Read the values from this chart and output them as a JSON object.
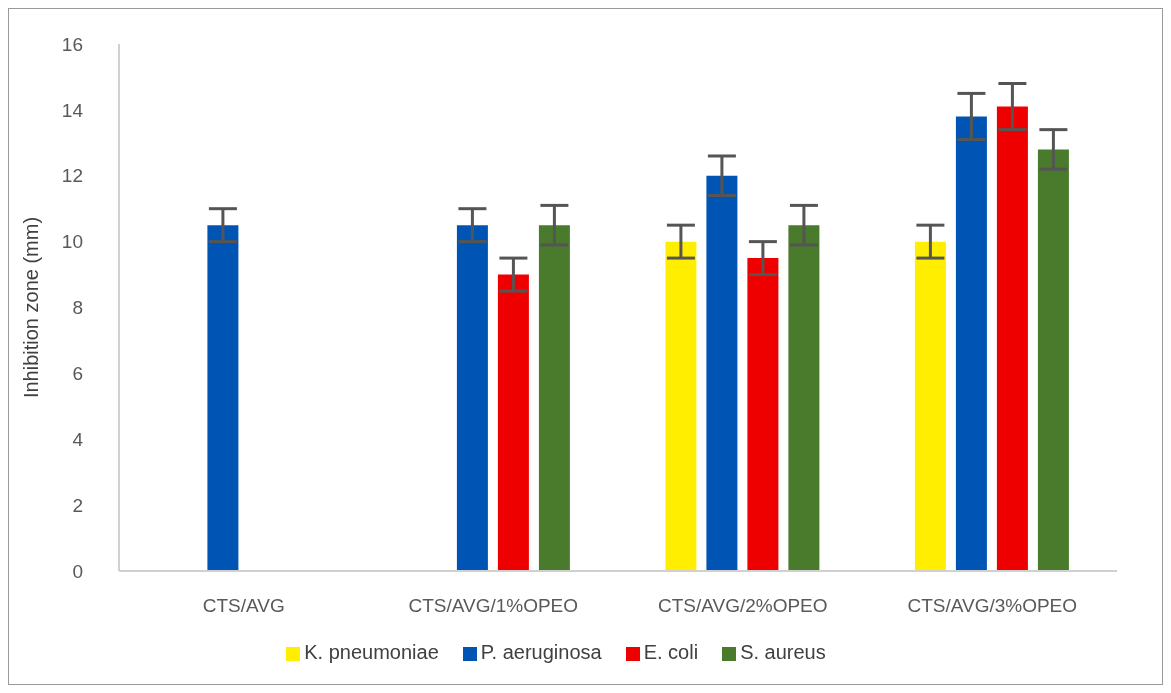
{
  "chart_data": {
    "type": "bar",
    "ylabel": "Inhibition zone (mm)",
    "categories": [
      "CTS/AVG",
      "CTS/AVG/1%OPEO",
      "CTS/AVG/2%OPEO",
      "CTS/AVG/3%OPEO"
    ],
    "series": [
      {
        "name": "K. pneumoniae",
        "color": "#ffee00",
        "values": [
          null,
          null,
          10,
          10
        ],
        "errors": [
          null,
          null,
          0.5,
          0.5
        ]
      },
      {
        "name": "P. aeruginosa",
        "color": "#0055b4",
        "values": [
          10.5,
          10.5,
          12,
          13.8
        ],
        "errors": [
          0.5,
          0.5,
          0.6,
          0.7
        ]
      },
      {
        "name": "E. coli",
        "color": "#ee0000",
        "values": [
          null,
          9,
          9.5,
          14.1
        ],
        "errors": [
          null,
          0.5,
          0.5,
          0.7
        ]
      },
      {
        "name": "S. aureus",
        "color": "#4a7a2c",
        "values": [
          null,
          10.5,
          10.5,
          12.8
        ],
        "errors": [
          null,
          0.6,
          0.6,
          0.6
        ]
      }
    ],
    "ylim": [
      0,
      16
    ],
    "yticks": [
      0,
      2,
      4,
      6,
      8,
      10,
      12,
      14,
      16
    ],
    "grid": false,
    "legend": "bottom"
  }
}
